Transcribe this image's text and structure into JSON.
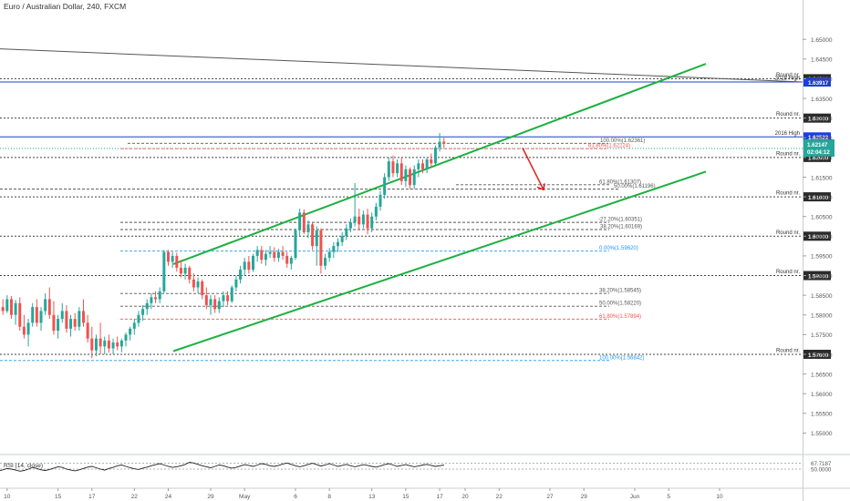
{
  "title": "Euro / Australian Dollar, 240, FXCM",
  "colors": {
    "bull": "#26a69a",
    "bear": "#ef5350",
    "channel": "#1eb040",
    "blue_level": "#1c3fd8",
    "fib_dash": "#555555",
    "fib_red": "#ef5350",
    "fib_blue": "#2196f3",
    "trend": "#555555",
    "arrow": "#e0201a",
    "rsi": "#222222"
  },
  "chart_data": {
    "type": "candlestick",
    "ylim": [
      1.545,
      1.66
    ],
    "y_ticks": [
      "1.65000",
      "1.64500",
      "1.64000",
      "1.63500",
      "1.63000",
      "1.62500",
      "1.62000",
      "1.61500",
      "1.61000",
      "1.60500",
      "1.60000",
      "1.59500",
      "1.59000",
      "1.58500",
      "1.58000",
      "1.57500",
      "1.57000",
      "1.56500",
      "1.56000",
      "1.55500",
      "1.55000"
    ],
    "x_ticks": [
      {
        "label": "10",
        "bar": 2
      },
      {
        "label": "15",
        "bar": 14
      },
      {
        "label": "17",
        "bar": 22
      },
      {
        "label": "22",
        "bar": 32
      },
      {
        "label": "24",
        "bar": 40
      },
      {
        "label": "29",
        "bar": 50
      },
      {
        "label": "May",
        "bar": 58
      },
      {
        "label": "6",
        "bar": 70
      },
      {
        "label": "8",
        "bar": 78
      },
      {
        "label": "13",
        "bar": 88
      },
      {
        "label": "15",
        "bar": 96
      },
      {
        "label": "17",
        "bar": 104
      },
      {
        "label": "20",
        "bar": 110
      },
      {
        "label": "22",
        "bar": 118
      },
      {
        "label": "27",
        "bar": 130
      },
      {
        "label": "29",
        "bar": 138
      },
      {
        "label": "Jun",
        "bar": 150
      },
      {
        "label": "5",
        "bar": 158
      },
      {
        "label": "10",
        "bar": 170
      }
    ],
    "bar_spacing_px": 4.65,
    "candles": [
      [
        1.5835,
        1.5855,
        1.5815,
        1.582
      ],
      [
        1.582,
        1.584,
        1.58,
        1.581
      ],
      [
        1.581,
        1.585,
        1.5805,
        1.584
      ],
      [
        1.584,
        1.5848,
        1.579,
        1.58
      ],
      [
        1.58,
        1.5838,
        1.5775,
        1.583
      ],
      [
        1.583,
        1.5845,
        1.576,
        1.577
      ],
      [
        1.577,
        1.58,
        1.574,
        1.575
      ],
      [
        1.575,
        1.579,
        1.572,
        1.578
      ],
      [
        1.578,
        1.583,
        1.577,
        1.582
      ],
      [
        1.582,
        1.584,
        1.577,
        1.578
      ],
      [
        1.578,
        1.582,
        1.576,
        1.581
      ],
      [
        1.581,
        1.5855,
        1.58,
        1.584
      ],
      [
        1.584,
        1.587,
        1.579,
        1.58
      ],
      [
        1.58,
        1.5835,
        1.575,
        1.576
      ],
      [
        1.576,
        1.58,
        1.574,
        1.579
      ],
      [
        1.579,
        1.583,
        1.578,
        1.581
      ],
      [
        1.581,
        1.5825,
        1.5755,
        1.5765
      ],
      [
        1.5765,
        1.58,
        1.5745,
        1.579
      ],
      [
        1.579,
        1.5805,
        1.576,
        1.577
      ],
      [
        1.577,
        1.582,
        1.576,
        1.581
      ],
      [
        1.581,
        1.584,
        1.577,
        1.578
      ],
      [
        1.578,
        1.58,
        1.573,
        1.574
      ],
      [
        1.574,
        1.577,
        1.569,
        1.571
      ],
      [
        1.571,
        1.575,
        1.5695,
        1.574
      ],
      [
        1.574,
        1.578,
        1.57,
        1.572
      ],
      [
        1.572,
        1.5745,
        1.57,
        1.5735
      ],
      [
        1.5735,
        1.575,
        1.5705,
        1.5715
      ],
      [
        1.5715,
        1.574,
        1.57,
        1.573
      ],
      [
        1.573,
        1.5745,
        1.571,
        1.572
      ],
      [
        1.572,
        1.574,
        1.5705,
        1.5735
      ],
      [
        1.5735,
        1.5755,
        1.572,
        1.575
      ],
      [
        1.575,
        1.577,
        1.5735,
        1.5765
      ],
      [
        1.5765,
        1.579,
        1.575,
        1.578
      ],
      [
        1.578,
        1.581,
        1.577,
        1.58
      ],
      [
        1.58,
        1.5825,
        1.5785,
        1.5815
      ],
      [
        1.5815,
        1.584,
        1.58,
        1.583
      ],
      [
        1.583,
        1.5855,
        1.5815,
        1.5845
      ],
      [
        1.5845,
        1.586,
        1.583,
        1.584
      ],
      [
        1.584,
        1.587,
        1.583,
        1.586
      ],
      [
        1.586,
        1.5965,
        1.5855,
        1.596
      ],
      [
        1.596,
        1.5965,
        1.5925,
        1.5935
      ],
      [
        1.5935,
        1.596,
        1.592,
        1.595
      ],
      [
        1.595,
        1.5958,
        1.591,
        1.592
      ],
      [
        1.592,
        1.594,
        1.5895,
        1.5905
      ],
      [
        1.5905,
        1.593,
        1.589,
        1.592
      ],
      [
        1.592,
        1.5925,
        1.588,
        1.589
      ],
      [
        1.589,
        1.5905,
        1.586,
        1.587
      ],
      [
        1.587,
        1.5895,
        1.5855,
        1.5885
      ],
      [
        1.5885,
        1.589,
        1.584,
        1.585
      ],
      [
        1.585,
        1.587,
        1.5815,
        1.5825
      ],
      [
        1.5825,
        1.585,
        1.58,
        1.584
      ],
      [
        1.584,
        1.585,
        1.5805,
        1.5815
      ],
      [
        1.5815,
        1.5845,
        1.5805,
        1.5835
      ],
      [
        1.5835,
        1.586,
        1.582,
        1.585
      ],
      [
        1.585,
        1.586,
        1.5825,
        1.5835
      ],
      [
        1.5835,
        1.5875,
        1.583,
        1.587
      ],
      [
        1.587,
        1.59,
        1.586,
        1.589
      ],
      [
        1.589,
        1.5925,
        1.588,
        1.5915
      ],
      [
        1.5915,
        1.5945,
        1.59,
        1.5935
      ],
      [
        1.5935,
        1.595,
        1.5905,
        1.5915
      ],
      [
        1.5915,
        1.5955,
        1.591,
        1.595
      ],
      [
        1.595,
        1.5975,
        1.5935,
        1.5965
      ],
      [
        1.5965,
        1.5975,
        1.593,
        1.594
      ],
      [
        1.594,
        1.5965,
        1.5925,
        1.5955
      ],
      [
        1.5955,
        1.5975,
        1.5945,
        1.596
      ],
      [
        1.596,
        1.5972,
        1.5935,
        1.5945
      ],
      [
        1.5945,
        1.5968,
        1.5935,
        1.596
      ],
      [
        1.596,
        1.5975,
        1.594,
        1.595
      ],
      [
        1.595,
        1.596,
        1.592,
        1.593
      ],
      [
        1.593,
        1.595,
        1.5915,
        1.5945
      ],
      [
        1.5945,
        1.602,
        1.594,
        1.6015
      ],
      [
        1.6015,
        1.607,
        1.6,
        1.606
      ],
      [
        1.606,
        1.6068,
        1.6005,
        1.601
      ],
      [
        1.601,
        1.604,
        1.5995,
        1.603
      ],
      [
        1.603,
        1.6035,
        1.5965,
        1.5975
      ],
      [
        1.5975,
        1.6025,
        1.5925,
        1.6015
      ],
      [
        1.6015,
        1.602,
        1.5905,
        1.5925
      ],
      [
        1.5925,
        1.5955,
        1.5915,
        1.5945
      ],
      [
        1.5945,
        1.597,
        1.5935,
        1.596
      ],
      [
        1.596,
        1.5985,
        1.5945,
        1.5975
      ],
      [
        1.5975,
        1.5995,
        1.596,
        1.5985
      ],
      [
        1.5985,
        1.601,
        1.5975,
        1.6
      ],
      [
        1.6,
        1.603,
        1.599,
        1.602
      ],
      [
        1.602,
        1.6045,
        1.601,
        1.6035
      ],
      [
        1.6035,
        1.6135,
        1.6025,
        1.605
      ],
      [
        1.605,
        1.607,
        1.6015,
        1.603
      ],
      [
        1.603,
        1.6065,
        1.602,
        1.6055
      ],
      [
        1.6055,
        1.607,
        1.6005,
        1.602
      ],
      [
        1.602,
        1.606,
        1.601,
        1.605
      ],
      [
        1.605,
        1.6085,
        1.604,
        1.6075
      ],
      [
        1.6075,
        1.6115,
        1.6065,
        1.6105
      ],
      [
        1.6105,
        1.616,
        1.6095,
        1.615
      ],
      [
        1.615,
        1.62,
        1.614,
        1.619
      ],
      [
        1.619,
        1.6205,
        1.615,
        1.616
      ],
      [
        1.616,
        1.6195,
        1.615,
        1.6185
      ],
      [
        1.6185,
        1.62,
        1.613,
        1.614
      ],
      [
        1.614,
        1.618,
        1.6125,
        1.617
      ],
      [
        1.617,
        1.6175,
        1.612,
        1.613
      ],
      [
        1.613,
        1.618,
        1.612,
        1.617
      ],
      [
        1.617,
        1.6195,
        1.615,
        1.6185
      ],
      [
        1.6185,
        1.6195,
        1.616,
        1.617
      ],
      [
        1.617,
        1.62,
        1.616,
        1.6195
      ],
      [
        1.6195,
        1.621,
        1.6175,
        1.6185
      ],
      [
        1.6185,
        1.623,
        1.618,
        1.6225
      ],
      [
        1.6225,
        1.6262,
        1.6215,
        1.624
      ],
      [
        1.624,
        1.625,
        1.6225,
        1.6235
      ]
    ],
    "annotations": [
      {
        "text": "100.00%(1.62361)",
        "price": 1.62361,
        "x0": 140,
        "x1": 667,
        "style": "dash-gray",
        "label_x": 658
      },
      {
        "text": "61.80%(1.62224)",
        "price": 1.62224,
        "x0": 132,
        "x1": 667,
        "style": "dash-red",
        "label_x": 645
      },
      {
        "text": "61.80%(1.61307)",
        "price": 1.61307,
        "x0": 500,
        "x1": 670,
        "style": "dash-gray",
        "label_x": 657
      },
      {
        "text": "50.00%(1.61196)",
        "price": 1.61196,
        "x0": 0,
        "x1": 680,
        "style": "dash-gray",
        "label_x": 673
      },
      {
        "text": "-27.20%(1.60351)",
        "price": 1.60351,
        "x0": 132,
        "x1": 668,
        "style": "dash-gray",
        "label_x": 656
      },
      {
        "text": "38.20%(1.60169)",
        "price": 1.60169,
        "x0": 132,
        "x1": 668,
        "style": "dash-gray",
        "label_x": 658
      },
      {
        "text": "0.00%(1.59620)",
        "price": 1.5962,
        "x0": 132,
        "x1": 668,
        "style": "dash-blue",
        "label_x": 657
      },
      {
        "text": "38.20%(1.58545)",
        "price": 1.58545,
        "x0": 132,
        "x1": 668,
        "style": "dash-gray",
        "label_x": 657
      },
      {
        "text": "50.00%(1.58220)",
        "price": 1.5822,
        "x0": 132,
        "x1": 668,
        "style": "dash-gray",
        "label_x": 657
      },
      {
        "text": "61.80%(1.57894)",
        "price": 1.57894,
        "x0": 132,
        "x1": 668,
        "style": "dash-red",
        "label_x": 657
      },
      {
        "text": "100.00%(1.56842)",
        "price": 1.56842,
        "x0": 0,
        "x1": 668,
        "style": "dash-blue",
        "label_x": 657
      }
    ],
    "levels": [
      {
        "label": "Round nr.",
        "price": 1.64,
        "style": "dash-dark",
        "axis_text": "1.64000"
      },
      {
        "label": "2018 High",
        "price": 1.63917,
        "style": "solid-blue",
        "axis_text": "1.63917"
      },
      {
        "label": "Round nr.",
        "price": 1.63,
        "style": "dash-dark",
        "axis_text": "1.63000"
      },
      {
        "label": "2016 High",
        "price": 1.62522,
        "style": "solid-blue",
        "axis_text": "1.62522"
      },
      {
        "label": "Round nr.",
        "price": 1.62,
        "style": "dash-dark",
        "axis_text": "1.62000"
      },
      {
        "label": "Round nr.",
        "price": 1.61,
        "style": "dash-dark",
        "axis_text": "1.61000"
      },
      {
        "label": "Round nr.",
        "price": 1.6,
        "style": "dash-dark",
        "axis_text": "1.60000"
      },
      {
        "label": "Round nr.",
        "price": 1.59,
        "style": "dash-dark",
        "axis_text": "1.59000"
      },
      {
        "label": "Round nr.",
        "price": 1.57,
        "style": "dash-dark",
        "axis_text": "1.57000"
      }
    ],
    "current_price": {
      "value": "1.62147",
      "countdown": "02:04:12"
    },
    "trendlines": [
      {
        "name": "descending-trendline",
        "p1": [
          0,
          1.6476
        ],
        "p2": [
          880,
          1.63917
        ],
        "style": "trend"
      },
      {
        "name": "channel-upper-line",
        "p1": [
          190,
          1.5929
        ],
        "p2": [
          774,
          1.6438
        ],
        "style": "channel"
      },
      {
        "name": "channel-lower-line",
        "p1": [
          190,
          1.5708
        ],
        "p2": [
          774,
          1.6164
        ],
        "style": "channel"
      }
    ],
    "arrow": {
      "from": [
        573,
        1.6224
      ],
      "to": [
        596,
        1.6118
      ]
    },
    "rsi": {
      "label": "RSI (14, close)",
      "ylim": [
        18,
        82
      ],
      "tick_labels": [
        "67.7187",
        "50.0000"
      ],
      "tick_values": [
        67.72,
        50
      ],
      "values": [
        45,
        48,
        52,
        50,
        47,
        44,
        46,
        50,
        55,
        52,
        48,
        46,
        49,
        53,
        57,
        55,
        50,
        47,
        45,
        48,
        52,
        56,
        58,
        54,
        50,
        47,
        52,
        55,
        60,
        62,
        58,
        54,
        51,
        49,
        53,
        56,
        60,
        63,
        66,
        62,
        58,
        55,
        57,
        60,
        64,
        70,
        68,
        64,
        60,
        57,
        54,
        58,
        62,
        60,
        56,
        53,
        55,
        59,
        63,
        61,
        58,
        62,
        66,
        64,
        60,
        58,
        61,
        65,
        68,
        64,
        60,
        57,
        60,
        64,
        67,
        63,
        59,
        62,
        66,
        62,
        58,
        61,
        64,
        60,
        57,
        60,
        63,
        61,
        58,
        56,
        59,
        63,
        66,
        62,
        58,
        61,
        63,
        60,
        57,
        59,
        62,
        64,
        61,
        58,
        60,
        62
      ]
    }
  }
}
